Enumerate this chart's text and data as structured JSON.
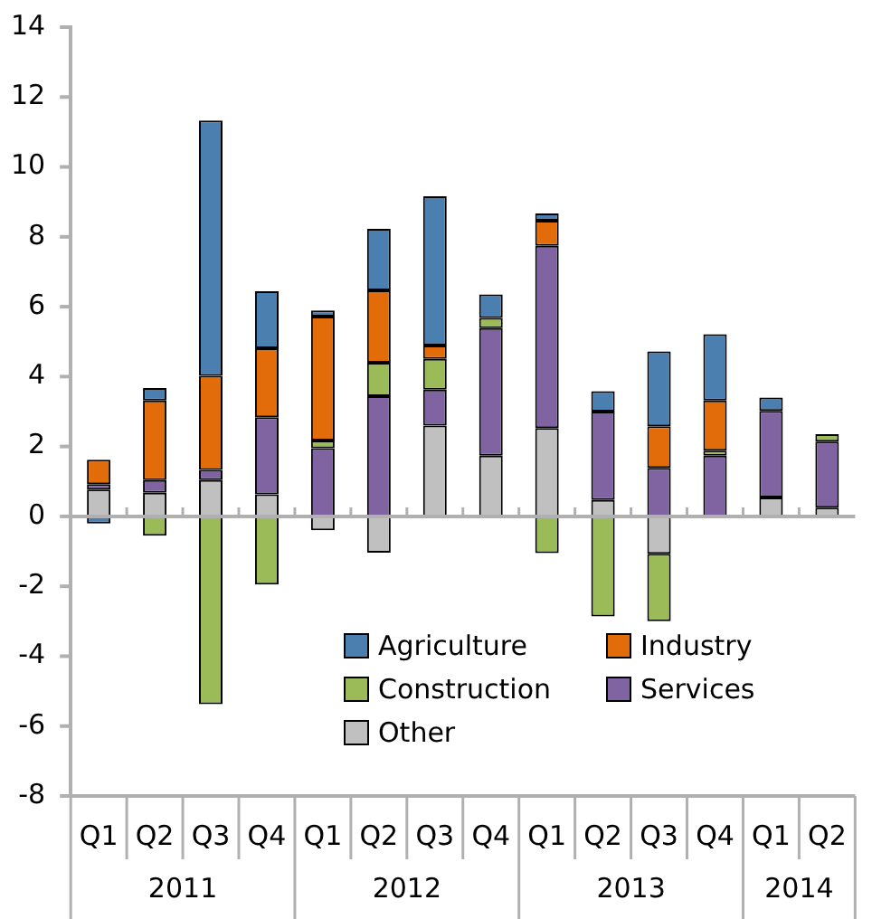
{
  "chart_data": {
    "type": "bar",
    "stacked": true,
    "categories": [
      "Q1",
      "Q2",
      "Q3",
      "Q4",
      "Q1",
      "Q2",
      "Q3",
      "Q4",
      "Q1",
      "Q2",
      "Q3",
      "Q4",
      "Q1",
      "Q2"
    ],
    "series": [
      {
        "name": "Other",
        "color": "#c0c0c0",
        "values": [
          0.77,
          0.68,
          1.04,
          0.63,
          -0.4,
          -1.04,
          2.6,
          1.74,
          2.53,
          0.47,
          -1.07,
          0,
          0.54,
          0.25
        ]
      },
      {
        "name": "Services",
        "color": "#8064a2",
        "values": [
          0.15,
          0.36,
          0.29,
          2.21,
          1.95,
          3.44,
          1.03,
          3.65,
          5.21,
          2.53,
          1.39,
          1.74,
          2.48,
          1.89
        ]
      },
      {
        "name": "Construction",
        "color": "#9bbb59",
        "values": [
          0,
          -0.55,
          -5.37,
          -1.95,
          0.22,
          0.96,
          0.88,
          0.29,
          -1.05,
          -2.86,
          -1.93,
          0.14,
          0,
          0.21
        ]
      },
      {
        "name": "Industry",
        "color": "#e36c0a",
        "values": [
          0.7,
          2.28,
          2.69,
          1.97,
          3.55,
          2.07,
          0.38,
          0,
          0.72,
          0,
          1.19,
          1.44,
          0,
          0
        ]
      },
      {
        "name": "Agriculture",
        "color": "#4a7fb0",
        "values": [
          -0.2,
          0.35,
          7.31,
          1.63,
          0.17,
          1.76,
          4.27,
          0.67,
          0.21,
          0.58,
          2.14,
          1.89,
          0.38,
          0
        ]
      }
    ],
    "ylim": [
      -8,
      14
    ],
    "yticks": [
      -8,
      -6,
      -4,
      -2,
      0,
      2,
      4,
      6,
      8,
      10,
      12,
      14
    ],
    "grid": false,
    "ref_lines": [
      {
        "axis": "y",
        "value": 0,
        "color": "#b0b0b0"
      }
    ],
    "legend": "bottom",
    "annotations": [
      "2011",
      "2012",
      "2013",
      "2014"
    ]
  }
}
